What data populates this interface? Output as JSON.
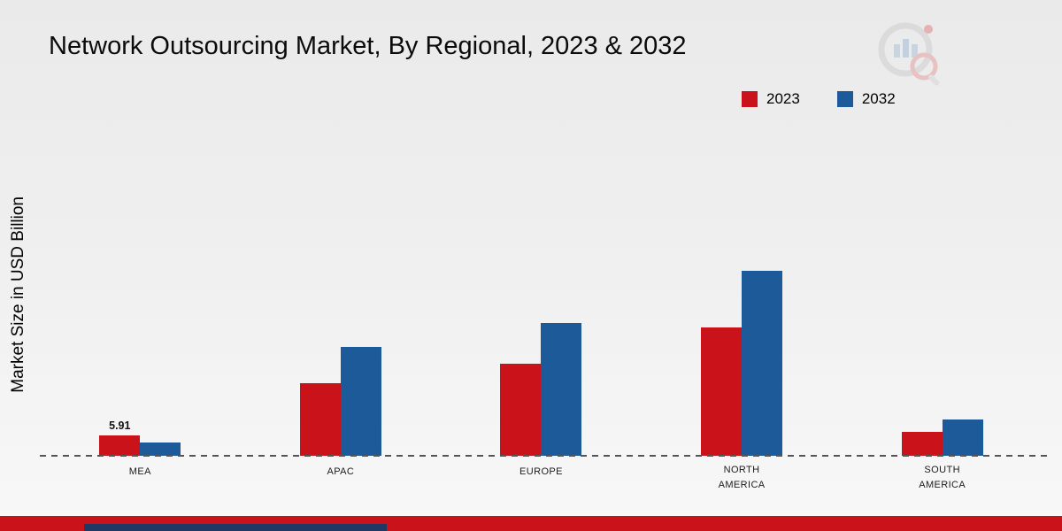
{
  "title": "Network Outsourcing Market, By Regional, 2023 & 2032",
  "y_axis_label": "Market Size in USD Billion",
  "legend": {
    "items": [
      {
        "label": "2023",
        "color": "#c9121a"
      },
      {
        "label": "2032",
        "color": "#1c5a99"
      }
    ]
  },
  "chart_data": {
    "type": "bar",
    "title": "Network Outsourcing Market, By Regional, 2023 & 2032",
    "categories": [
      "MEA",
      "APAC",
      "EUROPE",
      "NORTH AMERICA",
      "SOUTH AMERICA"
    ],
    "series": [
      {
        "name": "2023",
        "color": "#c9121a",
        "values": [
          5.91,
          21.0,
          26.5,
          37.0,
          7.0
        ]
      },
      {
        "name": "2032",
        "color": "#1c5a99",
        "values": [
          3.9,
          31.5,
          38.5,
          53.5,
          10.5
        ]
      }
    ],
    "xlabel": "",
    "ylabel": "Market Size in USD Billion",
    "ylim": [
      0,
      60
    ],
    "grid": false,
    "legend_position": "top-right",
    "data_labels": [
      {
        "series_index": 0,
        "category_index": 0,
        "text": "5.91"
      }
    ]
  },
  "footer": {
    "red_band_color": "#c9121a",
    "navy_band_color": "#1f3864"
  }
}
